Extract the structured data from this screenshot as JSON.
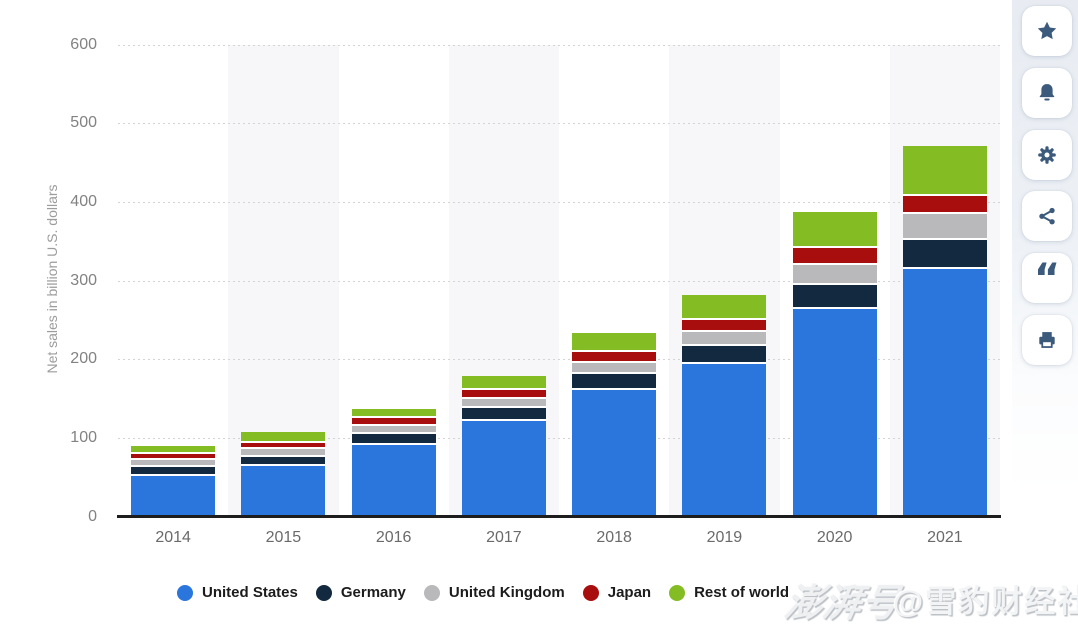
{
  "chart_data": {
    "type": "bar",
    "stacked": true,
    "title": "",
    "categories": [
      "2014",
      "2015",
      "2016",
      "2017",
      "2018",
      "2019",
      "2020",
      "2021"
    ],
    "series": [
      {
        "name": "United States",
        "color": "#2b76dd",
        "values": [
          50.83,
          63.71,
          90.35,
          120.49,
          160.15,
          193.64,
          263.52,
          314.01
        ]
      },
      {
        "name": "Germany",
        "color": "#13293f",
        "values": [
          11.92,
          11.82,
          14.15,
          16.95,
          19.88,
          22.23,
          29.57,
          37.33
        ]
      },
      {
        "name": "United Kingdom",
        "color": "#b9b9bb",
        "values": [
          8.34,
          9.03,
          9.55,
          11.37,
          14.52,
          17.53,
          26.48,
          31.91
        ]
      },
      {
        "name": "Japan",
        "color": "#a90e0e",
        "values": [
          7.91,
          8.26,
          10.8,
          11.91,
          13.83,
          16.0,
          20.46,
          23.07
        ]
      },
      {
        "name": "Rest of world",
        "color": "#84bc23",
        "values": [
          9.98,
          14.19,
          11.15,
          17.15,
          24.51,
          31.13,
          46.04,
          63.51
        ]
      }
    ],
    "xlabel": "",
    "ylabel": "Net sales in billion U.S. dollars",
    "ylim": [
      0,
      600
    ],
    "yticks": [
      0,
      100,
      200,
      300,
      400,
      500,
      600
    ],
    "grid": "horizontal dotted",
    "legend_position": "bottom",
    "banded_category_indices": [
      1,
      3,
      5,
      7
    ]
  },
  "sidebar": {
    "buttons": [
      {
        "name": "favorite",
        "icon": "star-icon"
      },
      {
        "name": "notifications",
        "icon": "bell-icon"
      },
      {
        "name": "settings",
        "icon": "gear-icon"
      },
      {
        "name": "share",
        "icon": "share-icon"
      },
      {
        "name": "cite",
        "icon": "quote-icon"
      },
      {
        "name": "print",
        "icon": "printer-icon"
      }
    ]
  },
  "watermark": {
    "platform_label": "澎湃号",
    "account_label": "@雪豹财经社"
  },
  "style_colors": {
    "axis": "#1d1d1d",
    "grid_dots": "#d4d4d4",
    "column_band": "#f7f7f9",
    "icon": "#3b5a7c"
  }
}
